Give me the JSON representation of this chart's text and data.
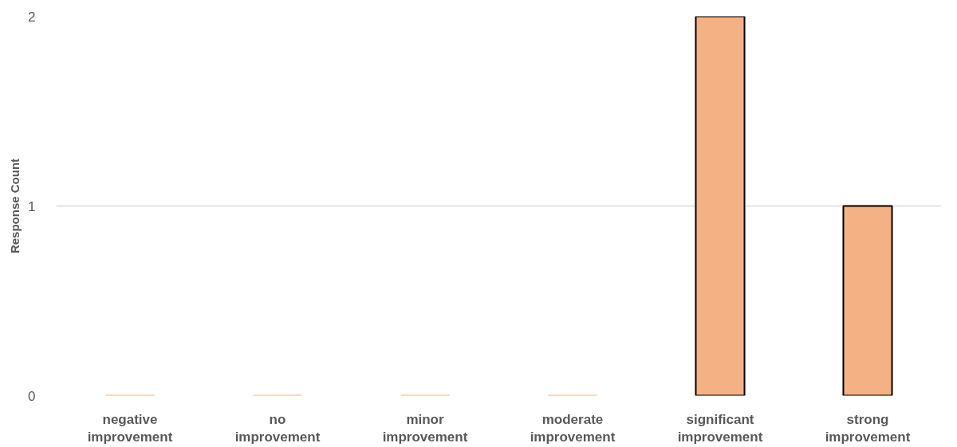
{
  "chart_data": {
    "type": "bar",
    "ylabel": "Response Count",
    "categories": [
      "negative improvement",
      "no improvement",
      "minor improvement",
      "moderate improvement",
      "significant improvement",
      "strong improvement"
    ],
    "values": [
      0,
      0,
      0,
      0,
      2,
      1
    ],
    "color": "#f4b183",
    "ylim": [
      0,
      2
    ],
    "yticks": [
      0,
      1,
      2
    ],
    "grid": "y"
  }
}
